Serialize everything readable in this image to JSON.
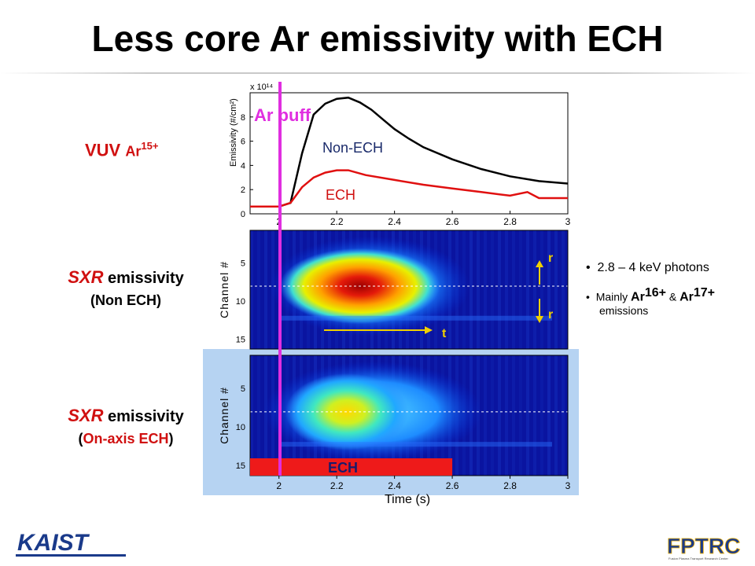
{
  "title": "Less core Ar emissivity with ECH",
  "labels": {
    "vuv": "VUV",
    "vuv_species": "Ar",
    "vuv_charge": "15+",
    "sxr1_italic": "SXR",
    "sxr1_rest": " emissivity",
    "sxr1_sub": "(Non ECH)",
    "sxr2_italic": "SXR",
    "sxr2_rest": " emissivity",
    "sxr2_sub_open": "(",
    "sxr2_sub_mid": "On-axis ECH",
    "sxr2_sub_close": ")",
    "ar_puff": "Ar puff",
    "ech_bar": "ECH",
    "r_top": "r",
    "r_bottom": "r",
    "t_arrow": "t"
  },
  "bullets": {
    "b1": "2.8 – 4 keV photons",
    "b2_pre": "Mainly ",
    "b2_ar1": "Ar",
    "b2_ar1_charge": "16+",
    "b2_amp": " & ",
    "b2_ar2": "Ar",
    "b2_ar2_charge": "17+",
    "b2_post": " emissions"
  },
  "logos": {
    "left": "KAIST",
    "right": "FPTRC",
    "right_sub": "Fusion Plasma Transport Research Center"
  },
  "colors": {
    "accent_red": "#d01010",
    "puff_line": "#e02ee0",
    "panel_blue": "#b6d3f2",
    "ech_bar": "#ee1a1a"
  },
  "chart_data": [
    {
      "type": "line",
      "ylabel": "Emissivity (#/cm²)",
      "y_multiplier": "x 10¹⁴",
      "xlim": [
        1.9,
        3.0
      ],
      "ylim": [
        0,
        10
      ],
      "x_ticks": [
        "2",
        "2.2",
        "2.4",
        "2.6",
        "2.8",
        "3"
      ],
      "y_ticks": [
        "0",
        "2",
        "4",
        "6",
        "8"
      ],
      "series": [
        {
          "name": "Non-ECH",
          "color": "#000000",
          "x": [
            1.9,
            1.96,
            2.0,
            2.04,
            2.08,
            2.12,
            2.16,
            2.2,
            2.24,
            2.28,
            2.32,
            2.36,
            2.4,
            2.45,
            2.5,
            2.6,
            2.7,
            2.8,
            2.9,
            3.0
          ],
          "y": [
            0.6,
            0.6,
            0.6,
            0.9,
            5.0,
            8.2,
            9.1,
            9.5,
            9.6,
            9.2,
            8.6,
            7.8,
            7.0,
            6.2,
            5.5,
            4.5,
            3.7,
            3.1,
            2.7,
            2.5
          ]
        },
        {
          "name": "ECH",
          "color": "#e01010",
          "x": [
            1.9,
            1.96,
            2.0,
            2.04,
            2.08,
            2.12,
            2.16,
            2.2,
            2.24,
            2.3,
            2.4,
            2.5,
            2.6,
            2.7,
            2.8,
            2.86,
            2.9,
            3.0
          ],
          "y": [
            0.6,
            0.6,
            0.6,
            0.9,
            2.2,
            3.0,
            3.4,
            3.6,
            3.6,
            3.2,
            2.8,
            2.4,
            2.1,
            1.8,
            1.5,
            1.8,
            1.3,
            1.3
          ]
        }
      ]
    },
    {
      "type": "heatmap",
      "ylabel": "Channel #",
      "xlim": [
        1.9,
        3.0
      ],
      "y_ticks": [
        "5",
        "10",
        "15"
      ],
      "hotspot_x_range": [
        2.1,
        2.46
      ],
      "emission_x_range": [
        2.05,
        2.58
      ],
      "peak_level": 1.0
    },
    {
      "type": "heatmap",
      "xlabel": "Time (s)",
      "ylabel": "Channel #",
      "xlim": [
        1.9,
        3.0
      ],
      "x_ticks": [
        "2",
        "2.2",
        "2.4",
        "2.6",
        "2.8",
        "3"
      ],
      "y_ticks": [
        "5",
        "10",
        "15"
      ],
      "hotspot_x_range": [
        2.12,
        2.35
      ],
      "emission_x_range": [
        2.03,
        2.62
      ],
      "peak_level": 0.72,
      "ech_on_range": [
        1.9,
        2.6
      ]
    }
  ]
}
